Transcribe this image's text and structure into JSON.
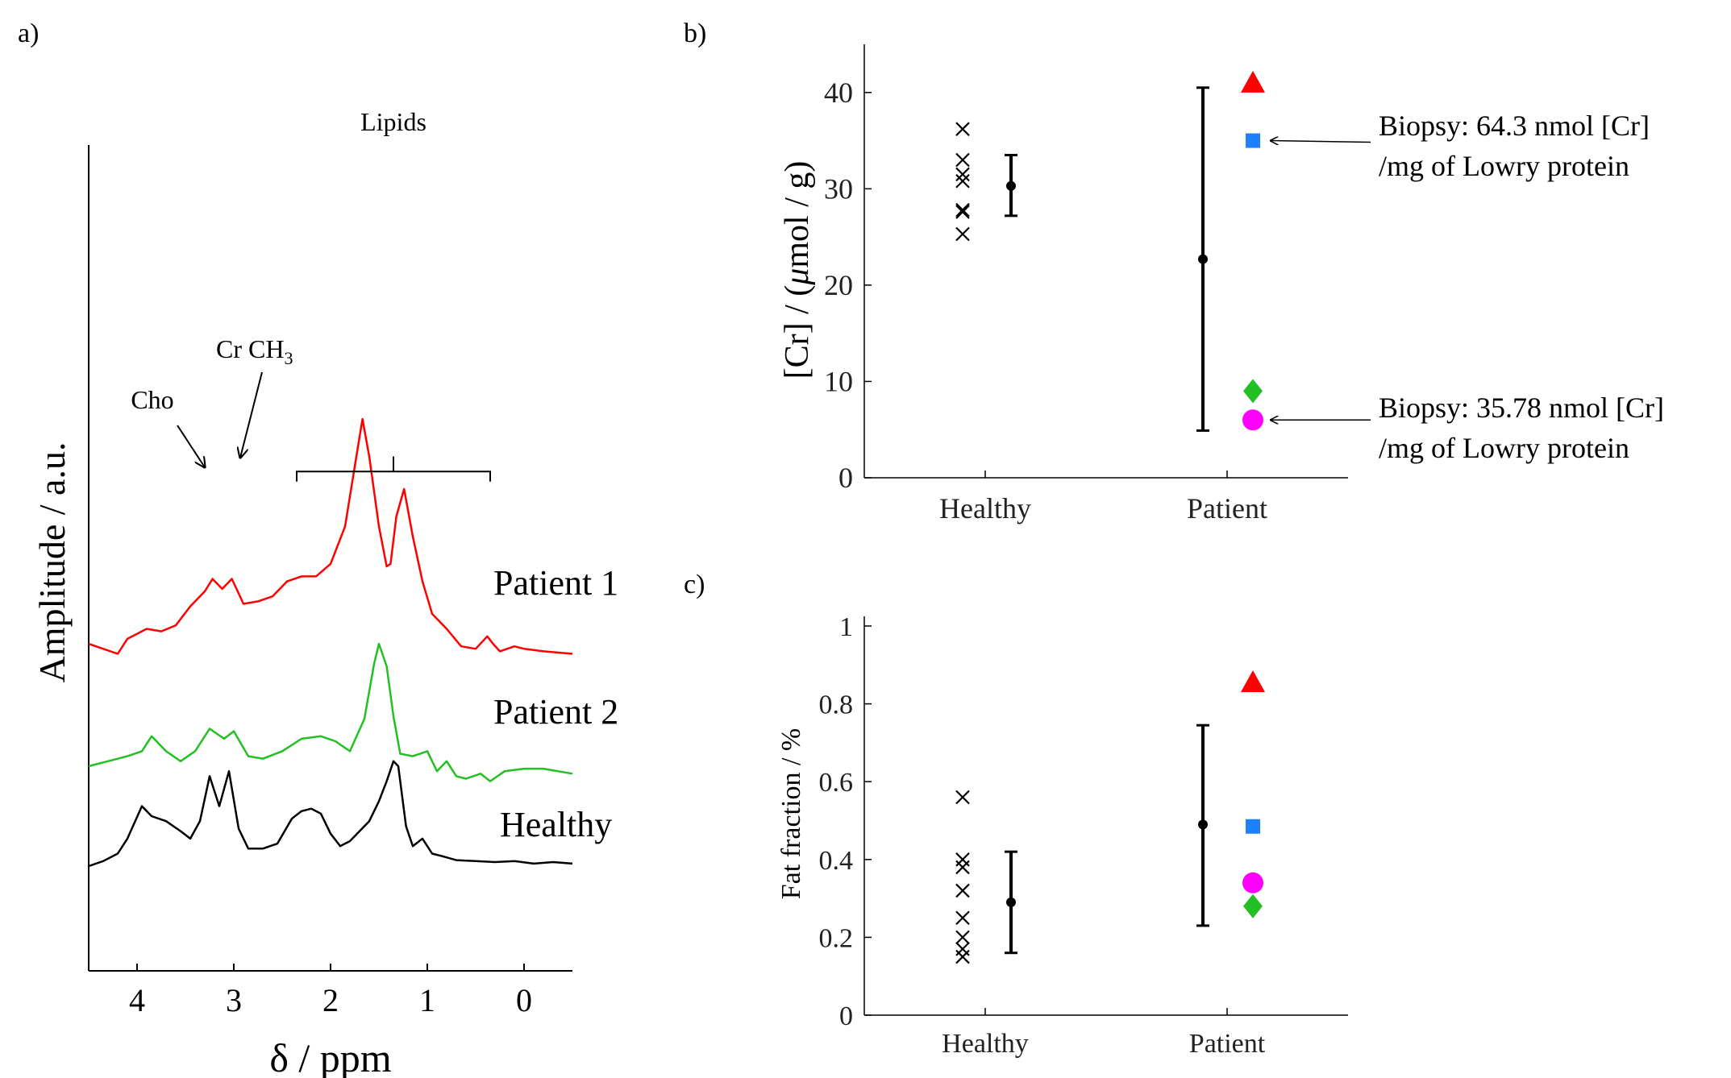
{
  "panels": {
    "a": "a)",
    "b": "b)",
    "c": "c)"
  },
  "chart_data": [
    {
      "id": "a",
      "type": "line",
      "title": "",
      "xlabel": "δ / ppm",
      "ylabel": "Amplitude / a.u.",
      "xlim": [
        4.5,
        -0.5
      ],
      "xticks": [
        4,
        3,
        2,
        1,
        0
      ],
      "grid": false,
      "annotations": {
        "lipids": "Lipids",
        "cho": "Cho",
        "cr_ch3_base": "Cr CH",
        "cr_ch3_sub": "3"
      },
      "series": [
        {
          "name": "Patient 1",
          "color": "#ff0000",
          "x": [
            4.5,
            4.35,
            4.2,
            4.1,
            3.9,
            3.75,
            3.6,
            3.45,
            3.3,
            3.22,
            3.12,
            3.02,
            2.9,
            2.75,
            2.6,
            2.45,
            2.3,
            2.15,
            2.0,
            1.85,
            1.75,
            1.67,
            1.6,
            1.5,
            1.42,
            1.38,
            1.32,
            1.24,
            1.15,
            1.05,
            0.95,
            0.8,
            0.65,
            0.5,
            0.38,
            0.32,
            0.25,
            0.1,
            0.0,
            -0.2,
            -0.5
          ],
          "y": [
            2.25,
            2.15,
            2.05,
            2.35,
            2.55,
            2.5,
            2.62,
            3.0,
            3.3,
            3.55,
            3.35,
            3.55,
            3.05,
            3.1,
            3.2,
            3.5,
            3.6,
            3.6,
            3.85,
            4.6,
            5.8,
            6.75,
            6.0,
            4.6,
            3.8,
            3.85,
            4.8,
            5.35,
            4.4,
            3.5,
            2.85,
            2.55,
            2.2,
            2.15,
            2.4,
            2.25,
            2.1,
            2.2,
            2.15,
            2.1,
            2.05
          ]
        },
        {
          "name": "Patient 2",
          "color": "#22c022",
          "x": [
            4.5,
            4.3,
            4.1,
            3.95,
            3.85,
            3.7,
            3.55,
            3.4,
            3.25,
            3.1,
            3.0,
            2.85,
            2.7,
            2.5,
            2.3,
            2.1,
            1.95,
            1.8,
            1.65,
            1.55,
            1.5,
            1.42,
            1.35,
            1.28,
            1.15,
            1.0,
            0.9,
            0.8,
            0.7,
            0.6,
            0.45,
            0.35,
            0.2,
            0.0,
            -0.2,
            -0.5
          ],
          "y": [
            1.0,
            1.1,
            1.2,
            1.3,
            1.6,
            1.3,
            1.1,
            1.3,
            1.75,
            1.55,
            1.7,
            1.2,
            1.15,
            1.3,
            1.55,
            1.6,
            1.5,
            1.3,
            1.95,
            3.05,
            3.45,
            3.0,
            2.0,
            1.25,
            1.2,
            1.3,
            0.9,
            1.1,
            0.8,
            0.75,
            0.85,
            0.7,
            0.9,
            0.95,
            0.95,
            0.85
          ]
        },
        {
          "name": "Healthy",
          "color": "#000000",
          "x": [
            4.5,
            4.35,
            4.2,
            4.1,
            3.95,
            3.85,
            3.7,
            3.55,
            3.45,
            3.35,
            3.25,
            3.15,
            3.05,
            2.95,
            2.85,
            2.7,
            2.55,
            2.4,
            2.3,
            2.2,
            2.1,
            2.0,
            1.9,
            1.8,
            1.7,
            1.6,
            1.5,
            1.42,
            1.35,
            1.3,
            1.22,
            1.15,
            1.05,
            0.95,
            0.85,
            0.7,
            0.5,
            0.3,
            0.1,
            -0.1,
            -0.3,
            -0.5
          ],
          "y": [
            0.0,
            0.1,
            0.25,
            0.55,
            1.2,
            1.0,
            0.9,
            0.7,
            0.55,
            0.9,
            1.8,
            1.2,
            1.9,
            0.75,
            0.35,
            0.35,
            0.45,
            0.95,
            1.1,
            1.15,
            1.05,
            0.65,
            0.4,
            0.5,
            0.7,
            0.9,
            1.3,
            1.7,
            2.1,
            2.0,
            0.8,
            0.4,
            0.55,
            0.25,
            0.2,
            0.12,
            0.1,
            0.08,
            0.1,
            0.05,
            0.08,
            0.05
          ]
        }
      ],
      "offsets": [
        2.2,
        1.0,
        0.0
      ],
      "labels": [
        "Patient 1",
        "Patient 2",
        "Healthy"
      ]
    },
    {
      "id": "b",
      "type": "scatter",
      "title": "",
      "xlabel": "",
      "ylabel_base": "[Cr] / (",
      "ylabel_mu": "μ",
      "ylabel_rest": "mol / g)",
      "ylim": [
        0,
        45
      ],
      "yticks": [
        0,
        10,
        20,
        30,
        40
      ],
      "categories": [
        "Healthy",
        "Patient"
      ],
      "grid": false,
      "healthy_points": [
        36.2,
        33.0,
        31.5,
        30.8,
        27.8,
        27.6,
        25.3
      ],
      "healthy_mean": 30.3,
      "healthy_err": [
        27.2,
        33.5
      ],
      "patient_mean": 22.7,
      "patient_err": [
        4.9,
        40.5
      ],
      "patient_points": [
        {
          "marker": "triangle",
          "color": "#ff0000",
          "value": 41.0
        },
        {
          "marker": "square",
          "color": "#1e7fff",
          "value": 35.0
        },
        {
          "marker": "diamond",
          "color": "#22c022",
          "value": 9.0
        },
        {
          "marker": "circle",
          "color": "#ff00ff",
          "value": 6.0
        }
      ],
      "annotations": [
        {
          "line1": "Biopsy: 64.3 nmol [Cr]",
          "line2": "/mg of Lowry protein",
          "target_value": 35.0
        },
        {
          "line1": "Biopsy: 35.78 nmol [Cr]",
          "line2": "/mg of Lowry protein",
          "target_value": 6.0
        }
      ]
    },
    {
      "id": "c",
      "type": "scatter",
      "title": "",
      "xlabel": "",
      "ylabel": "Fat fraction / %",
      "ylim": [
        0,
        1
      ],
      "yticks": [
        "0",
        "0.2",
        "0.4",
        "0.6",
        "0.8",
        "1"
      ],
      "ytick_values": [
        0,
        0.2,
        0.4,
        0.6,
        0.8,
        1.0
      ],
      "categories": [
        "Healthy",
        "Patient"
      ],
      "grid": false,
      "healthy_points": [
        0.56,
        0.4,
        0.38,
        0.32,
        0.25,
        0.2,
        0.17,
        0.15
      ],
      "healthy_mean": 0.29,
      "healthy_err": [
        0.16,
        0.42
      ],
      "patient_mean": 0.49,
      "patient_err": [
        0.23,
        0.745
      ],
      "patient_points": [
        {
          "marker": "triangle",
          "color": "#ff0000",
          "value": 0.855
        },
        {
          "marker": "square",
          "color": "#1e7fff",
          "value": 0.485
        },
        {
          "marker": "circle",
          "color": "#ff00ff",
          "value": 0.34
        },
        {
          "marker": "diamond",
          "color": "#22c022",
          "value": 0.28
        }
      ]
    }
  ]
}
